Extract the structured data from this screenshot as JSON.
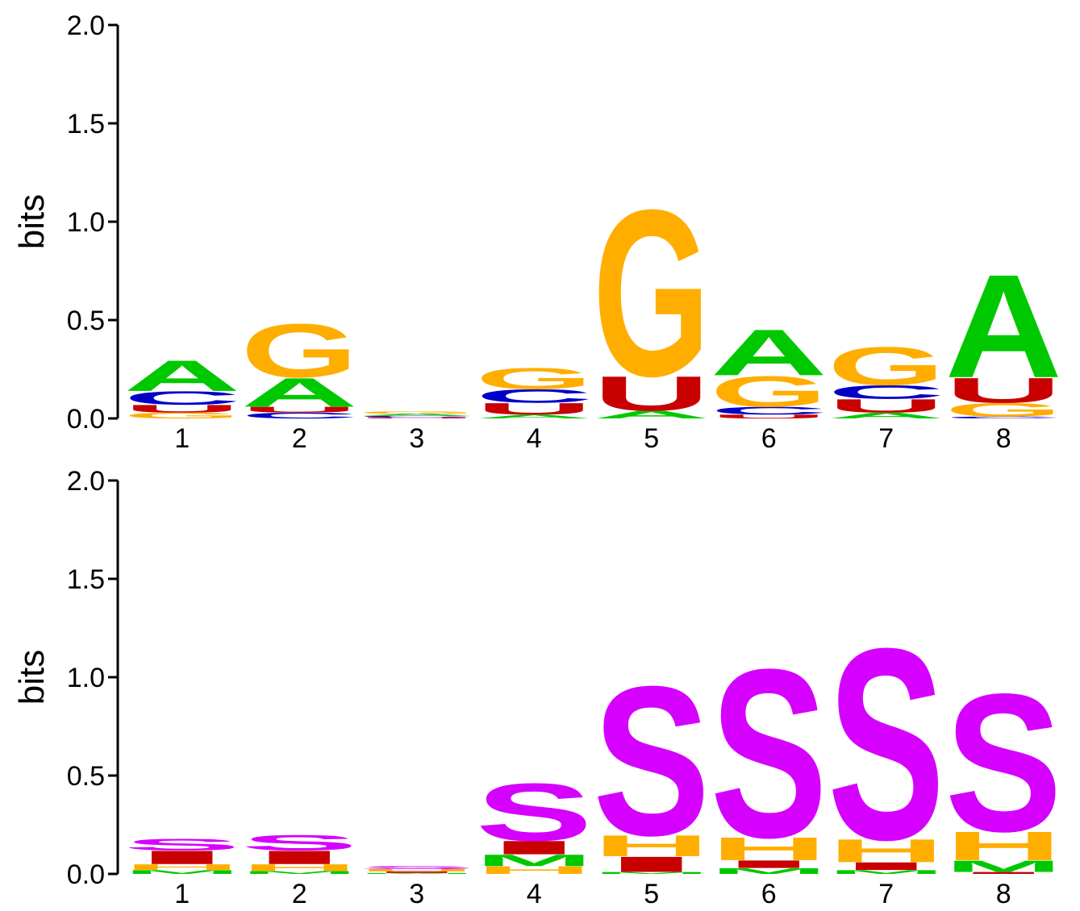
{
  "colors": {
    "A": "#00c800",
    "C": "#0000c8",
    "G": "#ffae00",
    "U": "#c80000",
    "S": "#d600ff",
    "M": "#00c800",
    "H": "#ffae00",
    "I": "#c80000"
  },
  "chart_data": [
    {
      "type": "sequence-logo",
      "ylabel": "bits",
      "ylim": [
        0,
        2.0
      ],
      "yticks": [
        "0.0",
        "0.5",
        "1.0",
        "1.5",
        "2.0"
      ],
      "positions": [
        "1",
        "2",
        "3",
        "4",
        "5",
        "6",
        "7",
        "8"
      ],
      "stacks": [
        [
          {
            "letter": "G",
            "height": 0.03
          },
          {
            "letter": "U",
            "height": 0.04
          },
          {
            "letter": "C",
            "height": 0.07
          },
          {
            "letter": "A",
            "height": 0.16
          }
        ],
        [
          {
            "letter": "C",
            "height": 0.03
          },
          {
            "letter": "U",
            "height": 0.03
          },
          {
            "letter": "A",
            "height": 0.15
          },
          {
            "letter": "G",
            "height": 0.28
          }
        ],
        [
          {
            "letter": "U",
            "height": 0.006
          },
          {
            "letter": "C",
            "height": 0.008
          },
          {
            "letter": "A",
            "height": 0.01
          },
          {
            "letter": "G",
            "height": 0.012
          }
        ],
        [
          {
            "letter": "A",
            "height": 0.02
          },
          {
            "letter": "U",
            "height": 0.06
          },
          {
            "letter": "C",
            "height": 0.07
          },
          {
            "letter": "G",
            "height": 0.11
          }
        ],
        [
          {
            "letter": "A",
            "height": 0.04
          },
          {
            "letter": "U",
            "height": 0.18
          },
          {
            "letter": "G",
            "height": 0.87
          }
        ],
        [
          {
            "letter": "U",
            "height": 0.02
          },
          {
            "letter": "C",
            "height": 0.04
          },
          {
            "letter": "G",
            "height": 0.16
          },
          {
            "letter": "A",
            "height": 0.24
          }
        ],
        [
          {
            "letter": "A",
            "height": 0.03
          },
          {
            "letter": "U",
            "height": 0.07
          },
          {
            "letter": "C",
            "height": 0.07
          },
          {
            "letter": "G",
            "height": 0.2
          }
        ],
        [
          {
            "letter": "C",
            "height": 0.01
          },
          {
            "letter": "G",
            "height": 0.07
          },
          {
            "letter": "U",
            "height": 0.13
          },
          {
            "letter": "A",
            "height": 0.54
          }
        ]
      ]
    },
    {
      "type": "sequence-logo",
      "ylabel": "bits",
      "ylim": [
        0,
        2.0
      ],
      "yticks": [
        "0.0",
        "0.5",
        "1.0",
        "1.5",
        "2.0"
      ],
      "positions": [
        "1",
        "2",
        "3",
        "4",
        "5",
        "6",
        "7",
        "8"
      ],
      "stacks": [
        [
          {
            "letter": "M",
            "height": 0.02
          },
          {
            "letter": "H",
            "height": 0.03
          },
          {
            "letter": "I",
            "height": 0.07
          },
          {
            "letter": "S",
            "height": 0.06
          }
        ],
        [
          {
            "letter": "M",
            "height": 0.015
          },
          {
            "letter": "H",
            "height": 0.035
          },
          {
            "letter": "I",
            "height": 0.07
          },
          {
            "letter": "S",
            "height": 0.08
          }
        ],
        [
          {
            "letter": "M",
            "height": 0.005
          },
          {
            "letter": "I",
            "height": 0.008
          },
          {
            "letter": "H",
            "height": 0.012
          },
          {
            "letter": "S",
            "height": 0.015
          }
        ],
        [
          {
            "letter": "H",
            "height": 0.04
          },
          {
            "letter": "M",
            "height": 0.06
          },
          {
            "letter": "I",
            "height": 0.07
          },
          {
            "letter": "S",
            "height": 0.3
          }
        ],
        [
          {
            "letter": "M",
            "height": 0.01
          },
          {
            "letter": "I",
            "height": 0.08
          },
          {
            "letter": "H",
            "height": 0.11
          },
          {
            "letter": "S",
            "height": 0.78
          }
        ],
        [
          {
            "letter": "M",
            "height": 0.03
          },
          {
            "letter": "I",
            "height": 0.04
          },
          {
            "letter": "H",
            "height": 0.12
          },
          {
            "letter": "S",
            "height": 0.88
          }
        ],
        [
          {
            "letter": "M",
            "height": 0.02
          },
          {
            "letter": "I",
            "height": 0.04
          },
          {
            "letter": "H",
            "height": 0.12
          },
          {
            "letter": "S",
            "height": 1.0
          }
        ],
        [
          {
            "letter": "I",
            "height": 0.01
          },
          {
            "letter": "M",
            "height": 0.06
          },
          {
            "letter": "H",
            "height": 0.15
          },
          {
            "letter": "S",
            "height": 0.72
          }
        ]
      ]
    }
  ]
}
